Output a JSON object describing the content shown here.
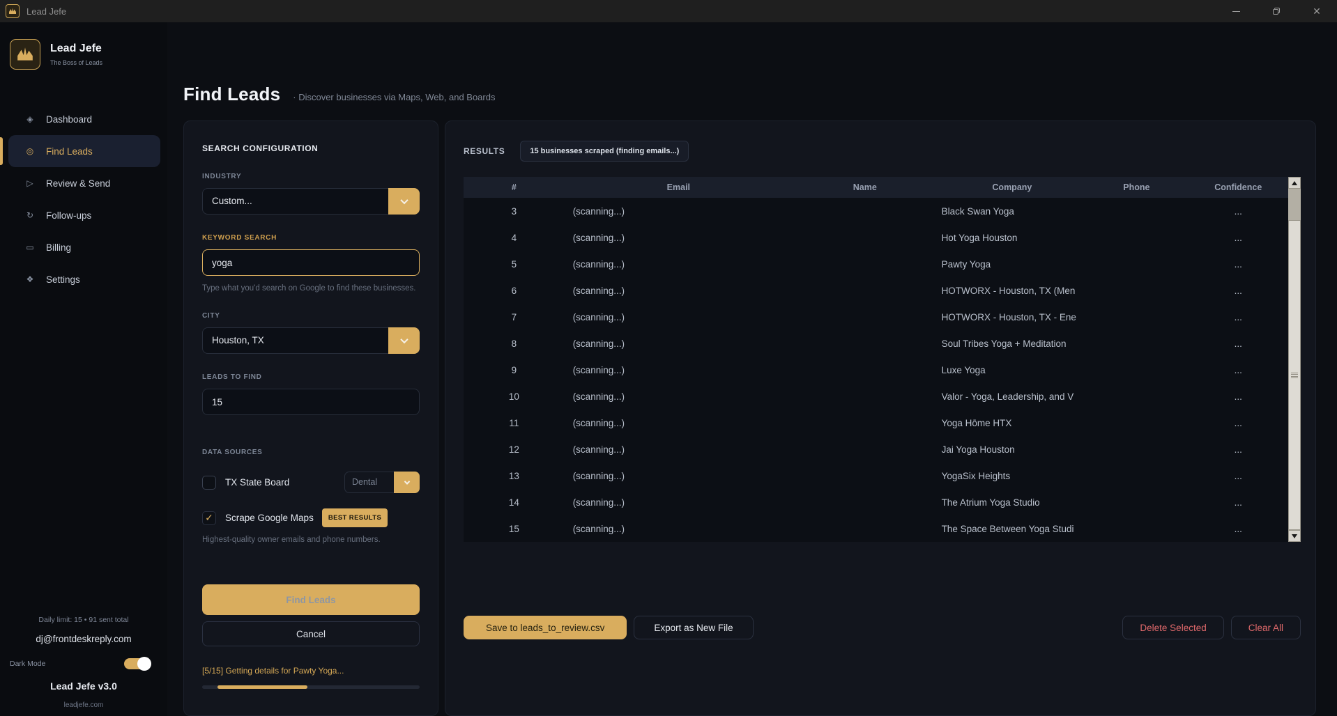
{
  "titlebar": {
    "title": "Lead Jefe"
  },
  "sidebar": {
    "brand": {
      "name": "Lead Jefe",
      "tagline": "The Boss of Leads"
    },
    "nav": [
      {
        "label": "Dashboard",
        "icon": "◈"
      },
      {
        "label": "Find Leads",
        "icon": "◎"
      },
      {
        "label": "Review & Send",
        "icon": "▷"
      },
      {
        "label": "Follow-ups",
        "icon": "↻"
      },
      {
        "label": "Billing",
        "icon": "▭"
      },
      {
        "label": "Settings",
        "icon": "❖"
      }
    ],
    "footer": {
      "daily_limit": "Daily limit: 15  •  91 sent total",
      "email": "dj@frontdeskreply.com",
      "dark_mode_label": "Dark Mode",
      "version": "Lead Jefe v3.0",
      "site": "leadjefe.com"
    }
  },
  "header": {
    "title": "Find Leads",
    "subtitle": "·   Discover businesses via Maps, Web, and Boards"
  },
  "config": {
    "section_title": "SEARCH CONFIGURATION",
    "industry": {
      "label": "INDUSTRY",
      "value": "Custom..."
    },
    "keyword": {
      "label": "KEYWORD SEARCH",
      "value": "yoga",
      "hint": "Type what you'd search on Google to find these businesses."
    },
    "city": {
      "label": "CITY",
      "value": "Houston, TX"
    },
    "leads_to_find": {
      "label": "LEADS TO FIND",
      "value": "15"
    },
    "data_sources": {
      "label": "DATA SOURCES",
      "tx_state_board": {
        "label": "TX State Board",
        "option": "Dental"
      },
      "google_maps": {
        "label": "Scrape Google Maps",
        "check": "✓",
        "badge": "BEST RESULTS"
      },
      "hint": "Highest-quality owner emails and phone numbers."
    },
    "find_button": "Find Leads",
    "cancel_button": "Cancel",
    "progress": {
      "status": "[5/15] Getting details for Pawty Yoga...",
      "left_pct": 7,
      "width_pct": 41.5
    }
  },
  "results": {
    "label": "RESULTS",
    "badge": "15 businesses scraped (finding emails...)",
    "columns": [
      "#",
      "Email",
      "Name",
      "Company",
      "Phone",
      "Confidence"
    ],
    "rows": [
      {
        "num": "3",
        "email": "(scanning...)",
        "name": "",
        "company": "Black Swan Yoga",
        "phone": "",
        "confidence": "..."
      },
      {
        "num": "4",
        "email": "(scanning...)",
        "name": "",
        "company": "Hot Yoga Houston",
        "phone": "",
        "confidence": "..."
      },
      {
        "num": "5",
        "email": "(scanning...)",
        "name": "",
        "company": "Pawty Yoga",
        "phone": "",
        "confidence": "..."
      },
      {
        "num": "6",
        "email": "(scanning...)",
        "name": "",
        "company": "HOTWORX - Houston, TX (Men",
        "phone": "",
        "confidence": "..."
      },
      {
        "num": "7",
        "email": "(scanning...)",
        "name": "",
        "company": "HOTWORX - Houston, TX - Ene",
        "phone": "",
        "confidence": "..."
      },
      {
        "num": "8",
        "email": "(scanning...)",
        "name": "",
        "company": "Soul Tribes Yoga + Meditation",
        "phone": "",
        "confidence": "..."
      },
      {
        "num": "9",
        "email": "(scanning...)",
        "name": "",
        "company": "Luxe Yoga",
        "phone": "",
        "confidence": "..."
      },
      {
        "num": "10",
        "email": "(scanning...)",
        "name": "",
        "company": "Valor - Yoga, Leadership, and V",
        "phone": "",
        "confidence": "..."
      },
      {
        "num": "11",
        "email": "(scanning...)",
        "name": "",
        "company": "Yoga Hōme HTX",
        "phone": "",
        "confidence": "..."
      },
      {
        "num": "12",
        "email": "(scanning...)",
        "name": "",
        "company": "Jai Yoga Houston",
        "phone": "",
        "confidence": "..."
      },
      {
        "num": "13",
        "email": "(scanning...)",
        "name": "",
        "company": "YogaSix Heights",
        "phone": "",
        "confidence": "..."
      },
      {
        "num": "14",
        "email": "(scanning...)",
        "name": "",
        "company": "The Atrium Yoga Studio",
        "phone": "",
        "confidence": "..."
      },
      {
        "num": "15",
        "email": "(scanning...)",
        "name": "",
        "company": "The Space Between Yoga Studi",
        "phone": "",
        "confidence": "..."
      }
    ],
    "actions": {
      "save": "Save to leads_to_review.csv",
      "export": "Export as New File",
      "delete": "Delete Selected",
      "clear": "Clear All"
    }
  },
  "colors": {
    "gold": "#d9ad5e",
    "red": "#e0696b"
  }
}
